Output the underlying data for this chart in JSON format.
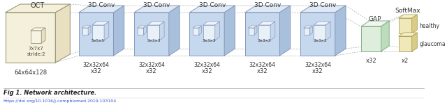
{
  "bg_color": "#ffffff",
  "fig_caption": "Fig 1. Network architecture.",
  "url_text": "https://doi.org/10.1016/j.compbiomed.2019.103104",
  "oct_label": "OCT",
  "oct_dims": "64x64x128",
  "oct_kernel": "7x7x7\nstride:2",
  "conv_labels": [
    "3D Conv",
    "3D Conv",
    "3D Conv",
    "3D Conv",
    "3D Conv"
  ],
  "conv_kernels": [
    "5x5x5",
    "3x3x3",
    "3x3x3",
    "3x3x3",
    "3x3x3"
  ],
  "conv_dims": [
    "32x32x64",
    "32x32x64",
    "32x32x64",
    "32x32x64",
    "32x32x64"
  ],
  "conv_rep": [
    "x32",
    "x32",
    "x32",
    "x32",
    "x32"
  ],
  "gap_label": "GAP",
  "gap_rep": "x32",
  "softmax_label": "SoftMax",
  "softmax_classes": [
    "healthy",
    "glaucoma"
  ],
  "softmax_rep": "x2",
  "oct_face_color": "#f5f0dc",
  "oct_top_color": "#f5f0dc",
  "oct_side_color": "#e8e0c0",
  "oct_edge_color": "#999977",
  "conv_face_color": "#c5d8ee",
  "conv_top_color": "#dde9f5",
  "conv_side_color": "#a8c0dc",
  "conv_edge_color": "#8899bb",
  "gap_face_color": "#ddeedd",
  "gap_top_color": "#eef6ee",
  "gap_side_color": "#bbddbb",
  "gap_edge_color": "#88aa88",
  "softmax_face_color": "#f0e8b8",
  "softmax_top_color": "#f8f2cc",
  "softmax_side_color": "#d8cc88",
  "softmax_edge_color": "#aaa055",
  "inner_face_color": "#e8f0f8",
  "inner_top_color": "#f0f4fc",
  "inner_side_color": "#c8d8ec",
  "inner_edge_color": "#8899bb",
  "fan_color": "#aaaaaa",
  "arrow_color": "#888888"
}
